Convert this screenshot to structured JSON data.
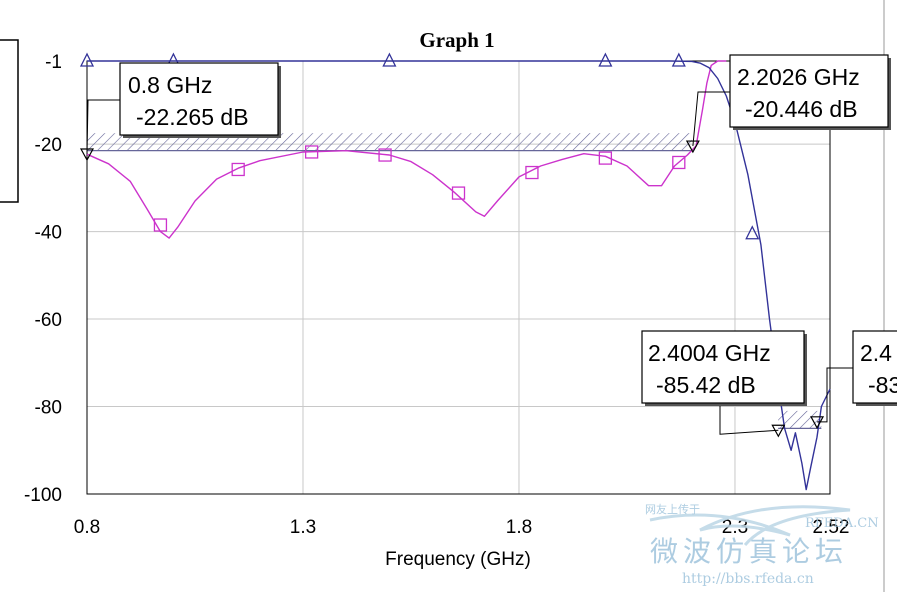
{
  "chart_data": {
    "type": "line",
    "title": "Graph 1",
    "xlabel": "Frequency (GHz)",
    "ylabel": "",
    "xlim": [
      0.8,
      2.52
    ],
    "ylim": [
      -100,
      -1
    ],
    "x_ticks": [
      0.8,
      1.3,
      1.8,
      2.3,
      2.52
    ],
    "x_tick_labels": [
      "0.8",
      "1.3",
      "1.8",
      "2.3",
      "2.52"
    ],
    "y_ticks": [
      -1,
      -20,
      -40,
      -60,
      -80,
      -100
    ],
    "y_tick_labels": [
      "-1",
      "-20",
      "-40",
      "-60",
      "-80",
      "-100"
    ],
    "grid": true,
    "series": [
      {
        "color": "#cc33cc",
        "marker": "square",
        "x": [
          0.8,
          0.85,
          0.9,
          0.94,
          0.97,
          0.99,
          1.01,
          1.05,
          1.1,
          1.15,
          1.2,
          1.3,
          1.4,
          1.5,
          1.55,
          1.6,
          1.65,
          1.7,
          1.72,
          1.75,
          1.8,
          1.85,
          1.9,
          1.95,
          2.0,
          2.05,
          2.1,
          2.13,
          2.16,
          2.19,
          2.21,
          2.225,
          2.235,
          2.245,
          2.26,
          2.28
        ],
        "y": [
          -22.3,
          -24.5,
          -28.5,
          -35,
          -40,
          -41.5,
          -39,
          -33,
          -28,
          -25.5,
          -23.8,
          -21.8,
          -21.5,
          -22.5,
          -24,
          -27,
          -31,
          -35.5,
          -36.5,
          -33,
          -27.5,
          -25,
          -23.5,
          -22.2,
          -22.8,
          -25,
          -29.5,
          -29.5,
          -25,
          -22.5,
          -20.4,
          -12,
          -6,
          -2,
          -1,
          -1
        ]
      },
      {
        "color": "#333399",
        "marker": "triangle",
        "x": [
          0.8,
          1.0,
          1.5,
          2.0,
          2.15,
          2.2,
          2.22,
          2.24,
          2.26,
          2.28,
          2.3,
          2.33,
          2.36,
          2.38,
          2.4,
          2.415,
          2.43,
          2.44,
          2.455,
          2.465,
          2.475,
          2.49,
          2.5,
          2.52
        ],
        "y": [
          -1,
          -1,
          -1,
          -1,
          -1,
          -1.1,
          -1.5,
          -2.5,
          -5,
          -9,
          -15,
          -27,
          -43,
          -60,
          -75,
          -85,
          -90,
          -86,
          -93,
          -99,
          -94,
          -87,
          -80,
          -76
        ]
      }
    ],
    "series_markers": [
      {
        "x": [
          0.97,
          1.15,
          1.32,
          1.49,
          1.66,
          1.83,
          2.0,
          2.17
        ],
        "y": [
          -38.5,
          -25.8,
          -21.8,
          -22.5,
          -31.2,
          -26.5,
          -23.2,
          -24.2
        ]
      },
      {
        "x": [
          0.8,
          1.0,
          1.5,
          2.0,
          2.17,
          2.34
        ],
        "y": [
          -1,
          -1,
          -1,
          -1,
          -1,
          -40.5
        ]
      }
    ],
    "spec_bands": [
      {
        "x": [
          0.8,
          2.2
        ],
        "y": [
          -21.5,
          -17.5
        ]
      },
      {
        "x": [
          2.4,
          2.5
        ],
        "y": [
          -85,
          -81
        ]
      }
    ],
    "markers": [
      {
        "freq": "0.8 GHz",
        "value": "-22.265 dB",
        "x": 0.8,
        "y": -22.265,
        "trace": "magenta"
      },
      {
        "freq": "2.2026 GHz",
        "value": "-20.446 dB",
        "x": 2.2026,
        "y": -20.446,
        "trace": "magenta"
      },
      {
        "freq": "2.4004 GHz",
        "value": "-85.42 dB",
        "x": 2.4004,
        "y": -85.42,
        "trace": "blue"
      },
      {
        "freq": "2.4",
        "value": "-83",
        "x": 2.49,
        "y": -83.5,
        "trace": "blue"
      }
    ]
  },
  "watermark": {
    "line1": "微波仿真论坛",
    "line2": "http://bbs.rfeda.cn",
    "line3": "网友上传于",
    "line4": "RFEDA.CN"
  }
}
